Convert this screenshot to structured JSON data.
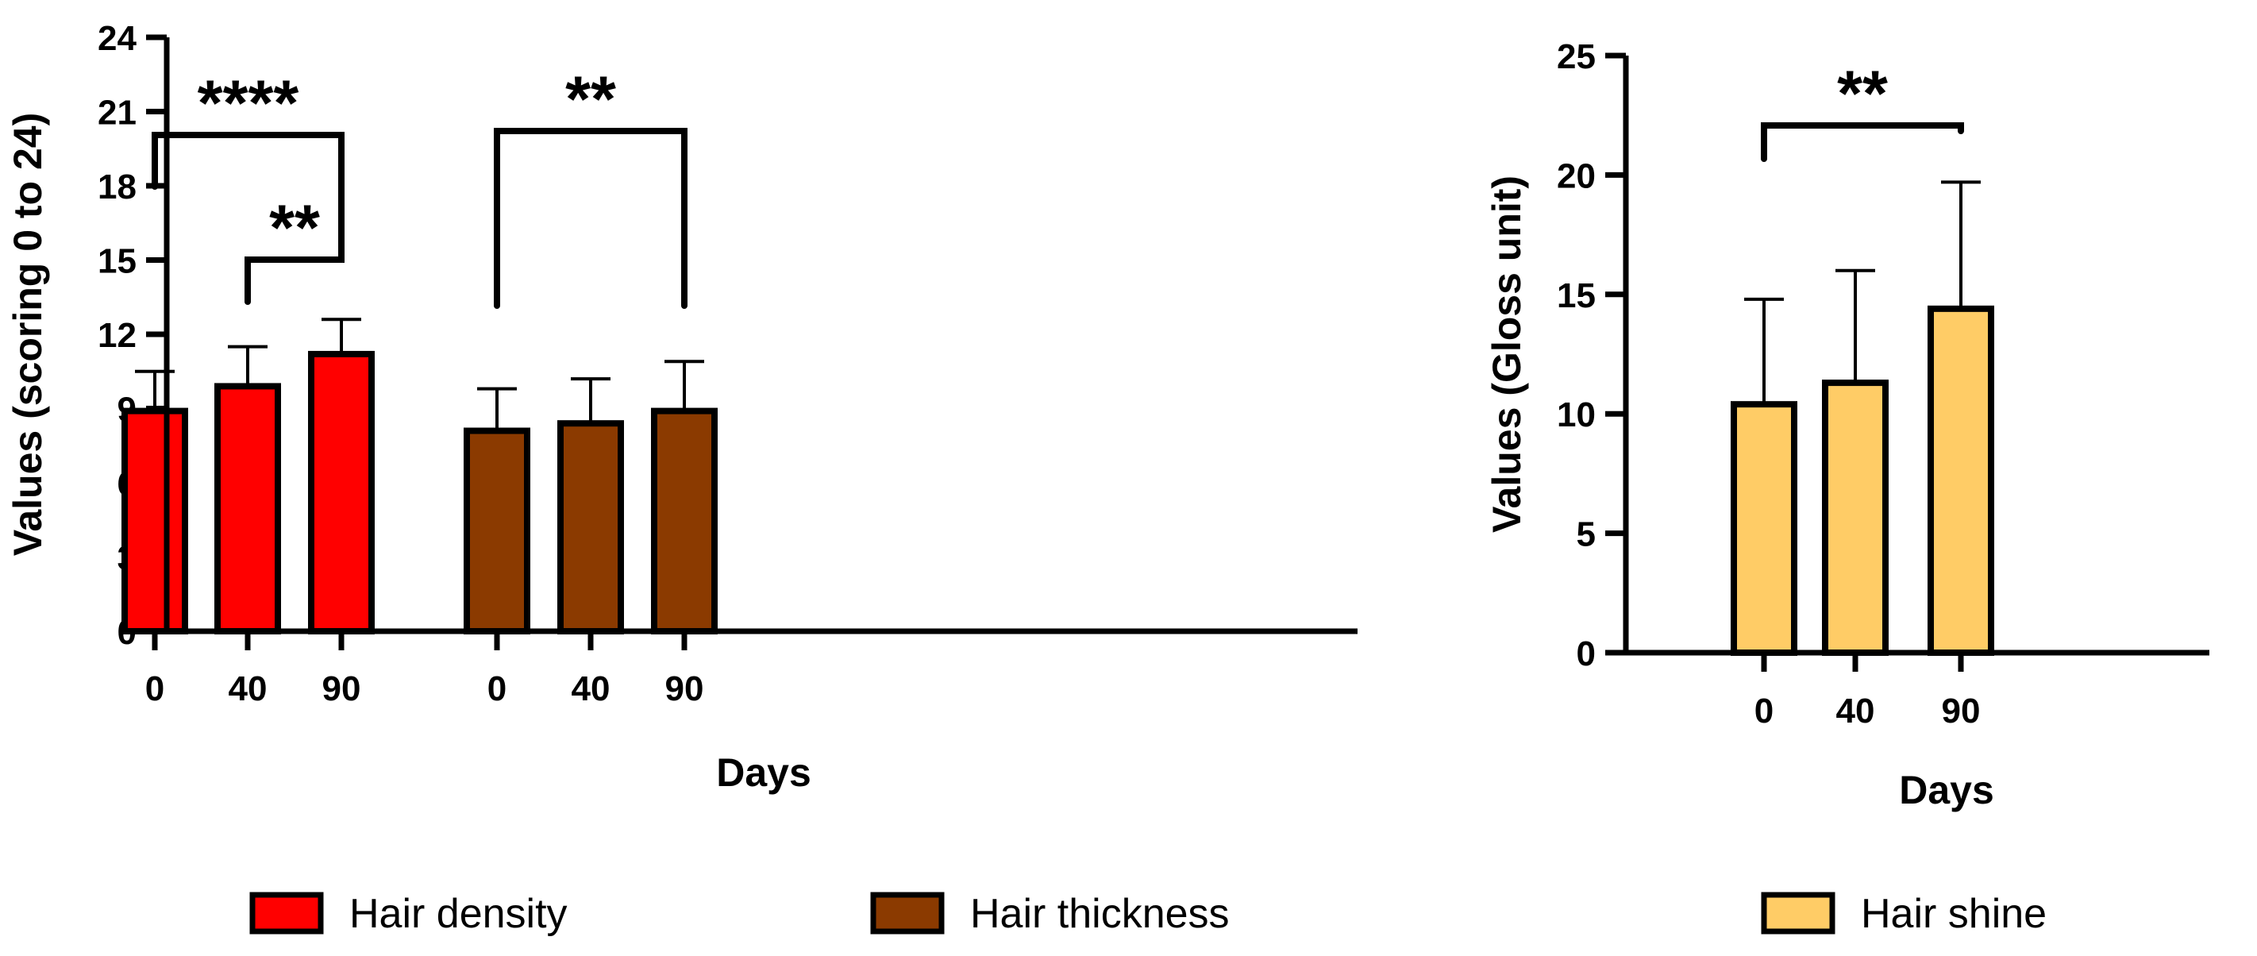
{
  "chart_data": [
    {
      "type": "bar",
      "xlabel": "Days",
      "ylabel": "Values (scoring 0 to 24)",
      "ylim": [
        0,
        24
      ],
      "yticks": [
        0,
        3,
        6,
        9,
        12,
        15,
        18,
        21,
        24
      ],
      "error_bars": "upper (SD)",
      "groups": [
        {
          "series": "Hair density",
          "color": "#ff0000",
          "categories": [
            "0",
            "40",
            "90"
          ],
          "values": [
            8.9,
            9.9,
            11.2
          ],
          "errors": [
            1.6,
            1.6,
            1.4
          ]
        },
        {
          "series": "Hair thickness",
          "color": "#8b3a00",
          "categories": [
            "0",
            "40",
            "90"
          ],
          "values": [
            8.1,
            8.4,
            8.9
          ],
          "errors": [
            1.7,
            1.8,
            2.0
          ]
        }
      ],
      "significance": [
        {
          "group": 0,
          "from": 0,
          "to": 2,
          "label": "****"
        },
        {
          "group": 0,
          "from": 1,
          "to": 2,
          "label": "**"
        },
        {
          "group": 1,
          "from": 0,
          "to": 2,
          "label": "**"
        }
      ]
    },
    {
      "type": "bar",
      "xlabel": "Days",
      "ylabel": "Values (Gloss unit)",
      "ylim": [
        0,
        25
      ],
      "yticks": [
        0,
        5,
        10,
        15,
        20,
        25
      ],
      "error_bars": "upper (SD)",
      "groups": [
        {
          "series": "Hair shine",
          "color": "#ffcc66",
          "categories": [
            "0",
            "40",
            "90"
          ],
          "values": [
            10.4,
            11.3,
            14.4
          ],
          "errors": [
            4.4,
            4.7,
            5.3
          ]
        }
      ],
      "significance": [
        {
          "group": 0,
          "from": 0,
          "to": 2,
          "label": "**"
        }
      ]
    }
  ],
  "legend": [
    {
      "label": "Hair density",
      "color": "#ff0000"
    },
    {
      "label": "Hair thickness",
      "color": "#8b3a00"
    },
    {
      "label": "Hair shine",
      "color": "#ffcc66"
    }
  ]
}
